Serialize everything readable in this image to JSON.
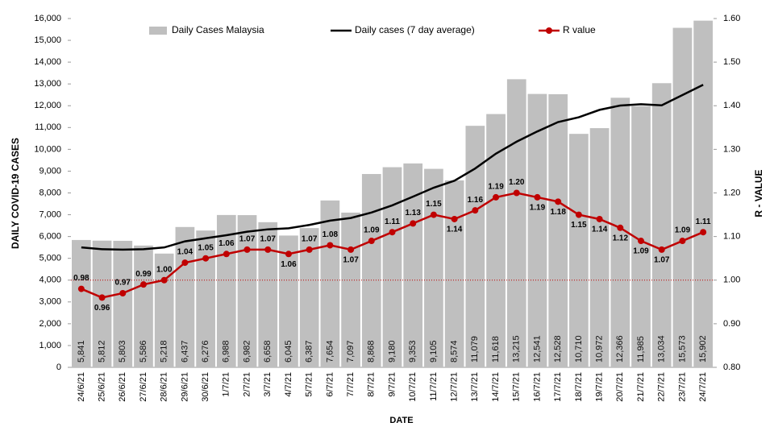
{
  "chart_data": {
    "type": "combo",
    "x_label": "DATE",
    "y_label": "DAILY COVID-19 CASES",
    "y2_label": "R - VALUE",
    "categories": [
      "24/6/21",
      "25/6/21",
      "26/6/21",
      "27/6/21",
      "28/6/21",
      "29/6/21",
      "30/6/21",
      "1/7/21",
      "2/7/21",
      "3/7/21",
      "4/7/21",
      "5/7/21",
      "6/7/21",
      "7/7/21",
      "8/7/21",
      "9/7/21",
      "10/7/21",
      "11/7/21",
      "12/7/21",
      "13/7/21",
      "14/7/21",
      "15/7/21",
      "16/7/21",
      "17/7/21",
      "18/7/21",
      "19/7/21",
      "20/7/21",
      "21/7/21",
      "22/7/21",
      "23/7/21",
      "24/7/21"
    ],
    "series": [
      {
        "name": "Daily Cases Malaysia",
        "type": "bar",
        "color": "#bfbfbf",
        "values": [
          5841,
          5812,
          5803,
          5586,
          5218,
          6437,
          6276,
          6988,
          6982,
          6658,
          6045,
          6387,
          7654,
          7097,
          8868,
          9180,
          9353,
          9105,
          8574,
          11079,
          11618,
          13215,
          12541,
          12528,
          10710,
          10972,
          12366,
          11985,
          13034,
          15573,
          15902
        ],
        "value_labels": [
          "5,841",
          "5,812",
          "5,803",
          "5,586",
          "5,218",
          "6,437",
          "6,276",
          "6,988",
          "6,982",
          "6,658",
          "6,045",
          "6,387",
          "7,654",
          "7,097",
          "8,868",
          "9,180",
          "9,353",
          "9,105",
          "8,574",
          "11,079",
          "11,618",
          "13,215",
          "12,541",
          "12,528",
          "10,710",
          "10,972",
          "12,366",
          "11,985",
          "13,034",
          "15,573",
          "15,902"
        ]
      },
      {
        "name": "Daily cases (7 day average)",
        "type": "line",
        "color": "#000000",
        "values": [
          5500,
          5420,
          5400,
          5420,
          5500,
          5780,
          5920,
          6060,
          6220,
          6330,
          6380,
          6530,
          6730,
          6850,
          7100,
          7430,
          7830,
          8240,
          8560,
          9120,
          9800,
          10350,
          10820,
          11250,
          11470,
          11810,
          12010,
          12070,
          12020,
          12490,
          12960
        ]
      },
      {
        "name": "R value",
        "type": "line",
        "axis": "y2",
        "color": "#c00000",
        "marker": true,
        "values": [
          0.98,
          0.96,
          0.97,
          0.99,
          1.0,
          1.04,
          1.05,
          1.06,
          1.07,
          1.07,
          1.06,
          1.07,
          1.08,
          1.07,
          1.09,
          1.11,
          1.13,
          1.15,
          1.14,
          1.16,
          1.19,
          1.2,
          1.19,
          1.18,
          1.15,
          1.14,
          1.12,
          1.09,
          1.07,
          1.09,
          1.11
        ],
        "value_labels": [
          "0.98",
          "0.96",
          "0.97",
          "0.99",
          "1.00",
          "1.04",
          "1.05",
          "1.06",
          "1.07",
          "1.07",
          "1.06",
          "1.07",
          "1.08",
          "1.07",
          "1.09",
          "1.11",
          "1.13",
          "1.15",
          "1.14",
          "1.16",
          "1.19",
          "1.20",
          "1.19",
          "1.18",
          "1.15",
          "1.14",
          "1.12",
          "1.09",
          "1.07",
          "1.09",
          "1.11"
        ]
      }
    ],
    "r_reference": 1.0,
    "ylim": [
      0,
      16000
    ],
    "yticks": [
      0,
      {
        "value": 1000,
        "label": "1,000"
      },
      {
        "value": 2000,
        "label": "2,000"
      },
      {
        "value": 3000,
        "label": "3,000"
      },
      {
        "value": 4000,
        "label": "4,000"
      },
      {
        "value": 5000,
        "label": "5,000"
      },
      {
        "value": 6000,
        "label": "6,000"
      },
      {
        "value": 7000,
        "label": "7,000"
      },
      {
        "value": 8000,
        "label": "8,000"
      },
      {
        "value": 9000,
        "label": "9,000"
      },
      {
        "value": 10000,
        "label": "10,000"
      },
      {
        "value": 11000,
        "label": "11,000"
      },
      {
        "value": 12000,
        "label": "12,000"
      },
      {
        "value": 13000,
        "label": "13,000"
      },
      {
        "value": 14000,
        "label": "14,000"
      },
      {
        "value": 15000,
        "label": "15,000"
      },
      {
        "value": 16000,
        "label": "16,000"
      }
    ],
    "y2lim": [
      0.8,
      1.6
    ],
    "y2ticks": [
      {
        "value": 0.8,
        "label": "0.80"
      },
      {
        "value": 0.9,
        "label": "0.90"
      },
      {
        "value": 1.0,
        "label": "1.00"
      },
      {
        "value": 1.1,
        "label": "1.10"
      },
      {
        "value": 1.2,
        "label": "1.20"
      },
      {
        "value": 1.3,
        "label": "1.30"
      },
      {
        "value": 1.4,
        "label": "1.40"
      },
      {
        "value": 1.5,
        "label": "1.50"
      },
      {
        "value": 1.6,
        "label": "1.60"
      }
    ],
    "legend": "top"
  }
}
